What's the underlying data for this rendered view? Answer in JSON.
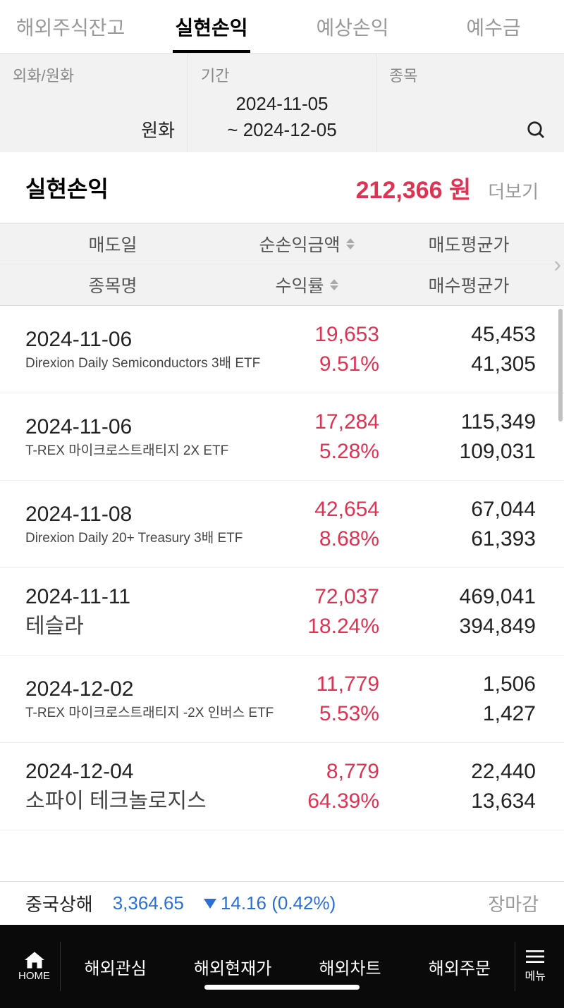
{
  "tabs": [
    {
      "label": "해외주식잔고"
    },
    {
      "label": "실현손익"
    },
    {
      "label": "예상손익"
    },
    {
      "label": "예수금"
    }
  ],
  "filters": {
    "currency": {
      "label": "외화/원화",
      "value": "원화"
    },
    "period": {
      "label": "기간",
      "line1": "2024-11-05",
      "line2": "~ 2024-12-05"
    },
    "stock": {
      "label": "종목"
    }
  },
  "summary": {
    "label": "실현손익",
    "value": "212,366 원",
    "more": "더보기"
  },
  "table_header": {
    "col1a": "매도일",
    "col1b": "종목명",
    "col2a": "순손익금액",
    "col2b": "수익률",
    "col3a": "매도평균가",
    "col3b": "매수평균가"
  },
  "rows": [
    {
      "date": "2024-11-06",
      "name": "Direxion Daily Semiconductors 3배 ETF",
      "name_large": false,
      "profit": "19,653",
      "rate": "9.51%",
      "sell": "45,453",
      "buy": "41,305"
    },
    {
      "date": "2024-11-06",
      "name": "T-REX 마이크로스트래티지 2X ETF",
      "name_large": false,
      "profit": "17,284",
      "rate": "5.28%",
      "sell": "115,349",
      "buy": "109,031"
    },
    {
      "date": "2024-11-08",
      "name": "Direxion Daily 20+ Treasury 3배 ETF",
      "name_large": false,
      "profit": "42,654",
      "rate": "8.68%",
      "sell": "67,044",
      "buy": "61,393"
    },
    {
      "date": "2024-11-11",
      "name": "테슬라",
      "name_large": true,
      "profit": "72,037",
      "rate": "18.24%",
      "sell": "469,041",
      "buy": "394,849"
    },
    {
      "date": "2024-12-02",
      "name": "T-REX 마이크로스트래티지 -2X 인버스 ETF",
      "name_large": false,
      "profit": "11,779",
      "rate": "5.53%",
      "sell": "1,506",
      "buy": "1,427"
    },
    {
      "date": "2024-12-04",
      "name": "소파이 테크놀로지스",
      "name_large": true,
      "profit": "8,779",
      "rate": "64.39%",
      "sell": "22,440",
      "buy": "13,634"
    }
  ],
  "ticker": {
    "name": "중국상해",
    "value": "3,364.65",
    "change": "14.16 (0.42%)",
    "status": "장마감"
  },
  "bottom_nav": {
    "home": "HOME",
    "items": [
      "해외관심",
      "해외현재가",
      "해외차트",
      "해외주문"
    ],
    "menu": "메뉴"
  },
  "colors": {
    "accent_red": "#e03252",
    "accent_blue": "#2b6fd6",
    "inactive_gray": "#999999",
    "bg_light": "#f2f2f2"
  }
}
